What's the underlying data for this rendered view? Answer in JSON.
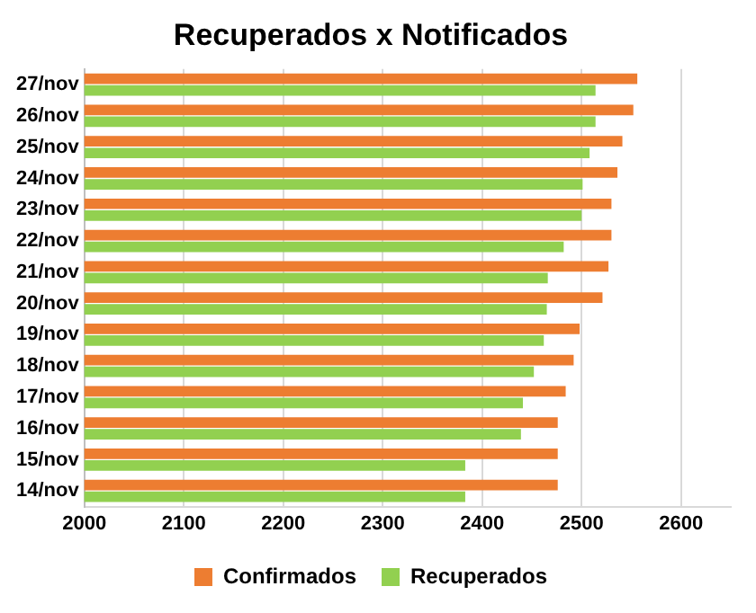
{
  "chart_data": {
    "type": "bar",
    "orientation": "horizontal",
    "title": "Recuperados x Notificados",
    "categories": [
      "27/nov",
      "26/nov",
      "25/nov",
      "24/nov",
      "23/nov",
      "22/nov",
      "21/nov",
      "20/nov",
      "19/nov",
      "18/nov",
      "17/nov",
      "16/nov",
      "15/nov",
      "14/nov"
    ],
    "series": [
      {
        "name": "Confirmados",
        "color": "#ed7d31",
        "values": [
          2556,
          2552,
          2541,
          2536,
          2530,
          2530,
          2527,
          2521,
          2498,
          2492,
          2484,
          2476,
          2476,
          2476
        ]
      },
      {
        "name": "Recuperados",
        "color": "#92d050",
        "values": [
          2514,
          2514,
          2508,
          2501,
          2500,
          2482,
          2466,
          2465,
          2462,
          2452,
          2441,
          2439,
          2383,
          2383
        ]
      }
    ],
    "xlim": [
      2000,
      2650
    ],
    "xticks": [
      2000,
      2100,
      2200,
      2300,
      2400,
      2500,
      2600
    ],
    "grid": "x",
    "legend": "bottom"
  }
}
